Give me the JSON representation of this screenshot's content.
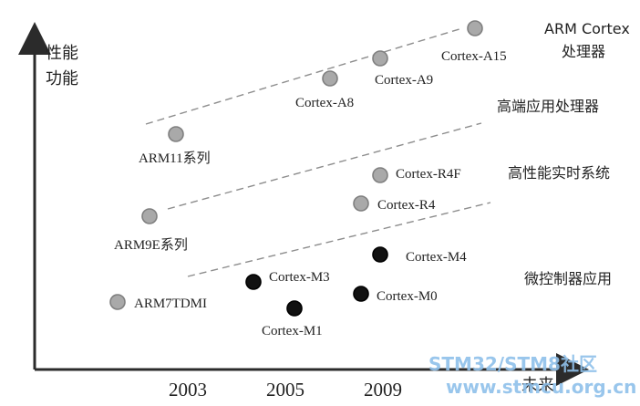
{
  "axes": {
    "y_label_line1": "性能",
    "y_label_line2": "功能",
    "x_label": "未来"
  },
  "years": [
    "2003",
    "2005",
    "2009"
  ],
  "categories": {
    "arm_cortex_line1": "ARM Cortex",
    "arm_cortex_line2": "处理器",
    "high_end": "高端应用处理器",
    "realtime": "高性能实时系统",
    "microcontroller": "微控制器应用"
  },
  "nodes": [
    {
      "id": "arm7tdmi",
      "label": "ARM7TDMI",
      "fill": "gray"
    },
    {
      "id": "arm9e",
      "label": "ARM9E系列",
      "fill": "gray"
    },
    {
      "id": "arm11",
      "label": "ARM11系列",
      "fill": "gray"
    },
    {
      "id": "cortex-a8",
      "label": "Cortex-A8",
      "fill": "gray"
    },
    {
      "id": "cortex-a9",
      "label": "Cortex-A9",
      "fill": "gray"
    },
    {
      "id": "cortex-a15",
      "label": "Cortex-A15",
      "fill": "gray"
    },
    {
      "id": "cortex-r4",
      "label": "Cortex-R4",
      "fill": "gray"
    },
    {
      "id": "cortex-r4f",
      "label": "Cortex-R4F",
      "fill": "gray"
    },
    {
      "id": "cortex-m3",
      "label": "Cortex-M3",
      "fill": "black"
    },
    {
      "id": "cortex-m1",
      "label": "Cortex-M1",
      "fill": "black"
    },
    {
      "id": "cortex-m0",
      "label": "Cortex-M0",
      "fill": "black"
    },
    {
      "id": "cortex-m4",
      "label": "Cortex-M4",
      "fill": "black"
    }
  ],
  "colors": {
    "axis": "#2b2b2b",
    "gray_node_fill": "#a9a9a9",
    "gray_node_stroke": "#7f7f7f",
    "black_node_fill": "#111111",
    "black_node_stroke": "#000000",
    "dash": "#8d8d8d",
    "watermark": "#8fc0ea"
  },
  "watermark": {
    "line1": "STM32/STM8社区",
    "line2": "www.stmcu.org.cn"
  }
}
